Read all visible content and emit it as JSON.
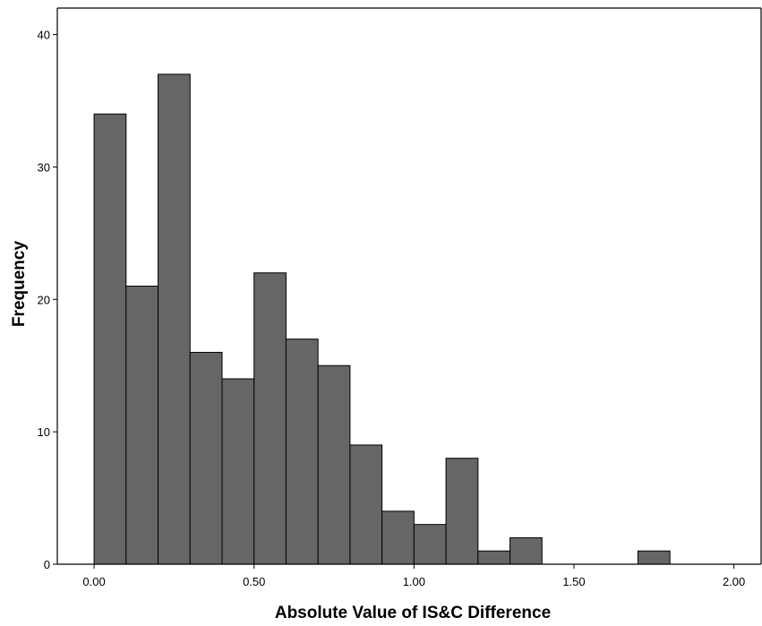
{
  "chart_data": {
    "type": "bar",
    "title": "",
    "xlabel": "Absolute Value of IS&C Difference",
    "ylabel": "Frequency",
    "bin_width": 0.1,
    "bins": [
      {
        "start": 0.0,
        "end": 0.1,
        "count": 34
      },
      {
        "start": 0.1,
        "end": 0.2,
        "count": 21
      },
      {
        "start": 0.2,
        "end": 0.3,
        "count": 37
      },
      {
        "start": 0.3,
        "end": 0.4,
        "count": 16
      },
      {
        "start": 0.4,
        "end": 0.5,
        "count": 14
      },
      {
        "start": 0.5,
        "end": 0.6,
        "count": 22
      },
      {
        "start": 0.6,
        "end": 0.7,
        "count": 17
      },
      {
        "start": 0.7,
        "end": 0.8,
        "count": 15
      },
      {
        "start": 0.8,
        "end": 0.9,
        "count": 9
      },
      {
        "start": 0.9,
        "end": 1.0,
        "count": 4
      },
      {
        "start": 1.0,
        "end": 1.1,
        "count": 3
      },
      {
        "start": 1.1,
        "end": 1.2,
        "count": 8
      },
      {
        "start": 1.2,
        "end": 1.3,
        "count": 1
      },
      {
        "start": 1.3,
        "end": 1.4,
        "count": 2
      },
      {
        "start": 1.7,
        "end": 1.8,
        "count": 1
      }
    ],
    "xlim": [
      -0.115,
      2.085
    ],
    "ylim": [
      0,
      42
    ],
    "x_ticks": [
      0.0,
      0.5,
      1.0,
      1.5,
      2.0
    ],
    "x_tick_labels": [
      "0.00",
      "0.50",
      "1.00",
      "1.50",
      "2.00"
    ],
    "y_ticks": [
      0,
      10,
      20,
      30,
      40
    ],
    "y_tick_labels": [
      "0",
      "10",
      "20",
      "30",
      "40"
    ],
    "grid": false,
    "legend": "none",
    "colors": {
      "bar_fill": "#666666",
      "bar_stroke": "#000000",
      "axis": "#000000",
      "background": "#ffffff"
    }
  }
}
